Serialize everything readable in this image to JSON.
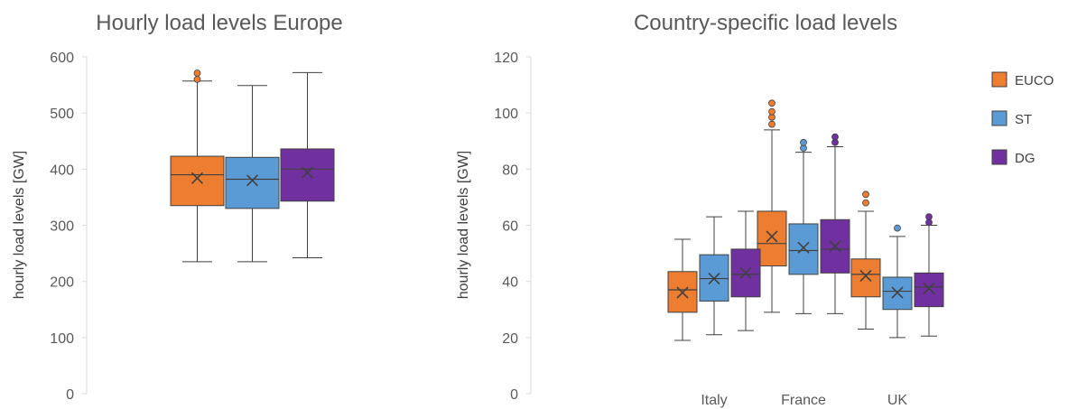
{
  "chart_data": [
    {
      "type": "box",
      "title": "Hourly load levels Europe",
      "ylabel": "hourly load levels [GW]",
      "ylim": [
        0,
        600
      ],
      "yticks": [
        "0",
        "100",
        "200",
        "300",
        "400",
        "500",
        "600"
      ],
      "categories": [
        ""
      ],
      "series": [
        {
          "name": "EUCO",
          "color": "#ED7D31",
          "boxes": [
            {
              "min": 235,
              "q1": 335,
              "median": 390,
              "q3": 423,
              "max": 557,
              "mean": 384,
              "outliers": [
                560,
                571
              ]
            }
          ]
        },
        {
          "name": "ST",
          "color": "#5B9BD5",
          "boxes": [
            {
              "min": 235,
              "q1": 330,
              "median": 382,
              "q3": 421,
              "max": 549,
              "mean": 380,
              "outliers": []
            }
          ]
        },
        {
          "name": "DG",
          "color": "#7030A0",
          "boxes": [
            {
              "min": 242,
              "q1": 343,
              "median": 400,
              "q3": 436,
              "max": 572,
              "mean": 394,
              "outliers": []
            }
          ]
        }
      ]
    },
    {
      "type": "box",
      "title": "Country-specific load levels",
      "ylabel": "hourly load levels [GW]",
      "ylim": [
        0,
        120
      ],
      "yticks": [
        "0",
        "20",
        "40",
        "60",
        "80",
        "100",
        "120"
      ],
      "categories": [
        "Italy",
        "France",
        "UK"
      ],
      "legend": {
        "position": "right",
        "entries": [
          "EUCO",
          "ST",
          "DG"
        ]
      },
      "series": [
        {
          "name": "EUCO",
          "color": "#ED7D31",
          "boxes": [
            {
              "min": 19,
              "q1": 29,
              "median": 37,
              "q3": 43.5,
              "max": 55,
              "mean": 36,
              "outliers": []
            },
            {
              "min": 29,
              "q1": 45.5,
              "median": 53.5,
              "q3": 65,
              "max": 94,
              "mean": 56,
              "outliers": [
                96,
                98.5,
                100.5,
                103.5
              ]
            },
            {
              "min": 23,
              "q1": 34.5,
              "median": 42.5,
              "q3": 48,
              "max": 65,
              "mean": 42,
              "outliers": [
                68,
                71
              ]
            }
          ]
        },
        {
          "name": "ST",
          "color": "#5B9BD5",
          "boxes": [
            {
              "min": 21,
              "q1": 33,
              "median": 41,
              "q3": 49.5,
              "max": 63,
              "mean": 41,
              "outliers": []
            },
            {
              "min": 28.5,
              "q1": 42.5,
              "median": 51,
              "q3": 60.5,
              "max": 86,
              "mean": 52,
              "outliers": [
                87.5,
                89.5
              ]
            },
            {
              "min": 20,
              "q1": 30,
              "median": 36.5,
              "q3": 41.5,
              "max": 56,
              "mean": 36,
              "outliers": [
                59
              ]
            }
          ]
        },
        {
          "name": "DG",
          "color": "#7030A0",
          "boxes": [
            {
              "min": 22.5,
              "q1": 34.5,
              "median": 42.5,
              "q3": 51.5,
              "max": 65,
              "mean": 43,
              "outliers": []
            },
            {
              "min": 28.5,
              "q1": 43,
              "median": 51.5,
              "q3": 62,
              "max": 88,
              "mean": 52.5,
              "outliers": [
                89.5,
                91.5
              ]
            },
            {
              "min": 20.5,
              "q1": 31,
              "median": 38,
              "q3": 43,
              "max": 60,
              "mean": 37.5,
              "outliers": [
                61,
                63
              ]
            }
          ]
        }
      ]
    }
  ]
}
